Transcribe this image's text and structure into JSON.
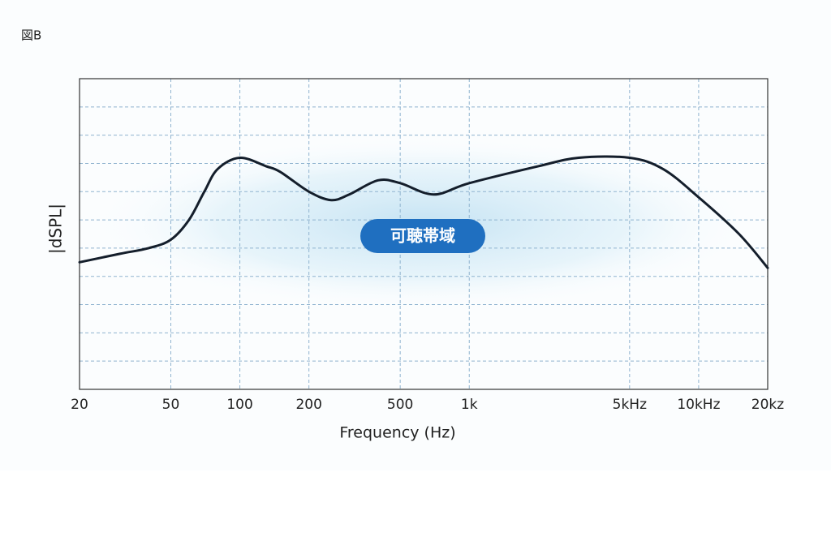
{
  "figure_label": "図B",
  "chart_data": {
    "type": "line",
    "badge": "可聴帯域",
    "xlabel": "Frequency (Hz)",
    "ylabel": "|dSPL|",
    "log_x": true,
    "grid": true,
    "xlim": [
      20,
      20000
    ],
    "xticks": [
      20,
      50,
      100,
      200,
      500,
      {
        "value": 1000,
        "label": "1k"
      },
      {
        "value": 5000,
        "label": "5kHz"
      },
      {
        "value": 10000,
        "label": "10kHz"
      },
      {
        "value": 20000,
        "label": "20kz"
      }
    ],
    "ylim": [
      0,
      11
    ],
    "yticks": [
      1,
      2,
      3,
      4,
      5,
      6,
      7,
      8,
      9,
      10
    ],
    "series": [
      {
        "color": "#141e2b",
        "x": [
          20,
          30,
          40,
          50,
          60,
          70,
          80,
          100,
          130,
          150,
          200,
          250,
          300,
          400,
          500,
          700,
          1000,
          2000,
          3000,
          5000,
          7000,
          10000,
          15000,
          20000
        ],
        "values": [
          4.5,
          4.8,
          5.0,
          5.3,
          6.0,
          7.0,
          7.8,
          8.2,
          7.9,
          7.7,
          7.0,
          6.7,
          6.9,
          7.4,
          7.3,
          6.9,
          7.3,
          7.9,
          8.2,
          8.2,
          7.8,
          6.8,
          5.5,
          4.3
        ]
      }
    ]
  }
}
